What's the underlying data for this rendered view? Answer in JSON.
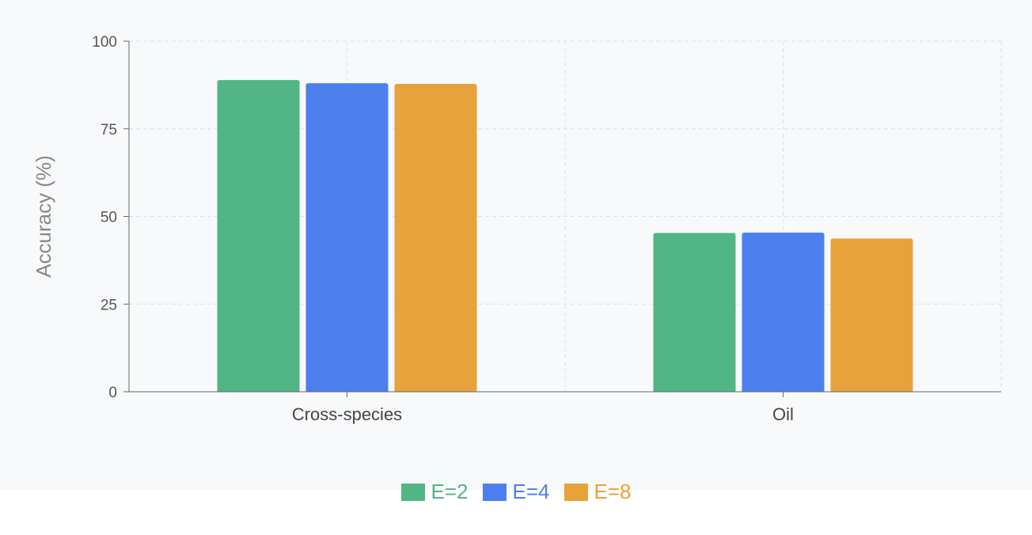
{
  "chart_data": {
    "type": "bar",
    "title": "",
    "xlabel": "",
    "ylabel": "Accuracy (%)",
    "ylim": [
      0,
      100
    ],
    "yticks": [
      0,
      25,
      50,
      75,
      100
    ],
    "grid": true,
    "legend_placement": "bottom",
    "categories": [
      "Cross-species",
      "Oil"
    ],
    "series": [
      {
        "name": "E=2",
        "color": "#52b585",
        "values": [
          88.9,
          45.3
        ]
      },
      {
        "name": "E=4",
        "color": "#4d80ee",
        "values": [
          88.0,
          45.4
        ]
      },
      {
        "name": "E=8",
        "color": "#e8a23b",
        "values": [
          87.8,
          43.7
        ]
      }
    ]
  }
}
